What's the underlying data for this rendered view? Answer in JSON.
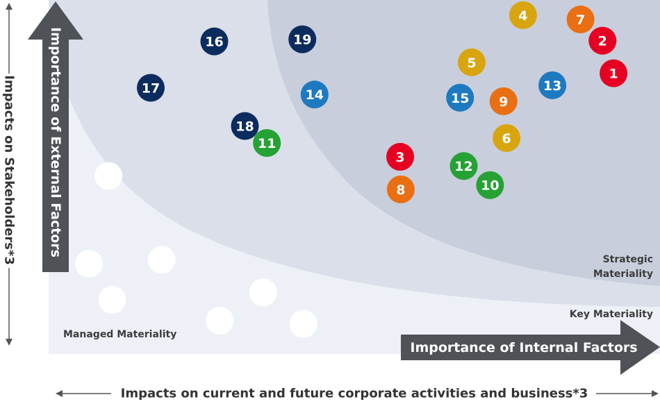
{
  "chart_data": {
    "type": "scatter",
    "x_axis": {
      "label": "Importance of Internal Factors",
      "outer_label": "Impacts on current and future corporate activities and business*3"
    },
    "y_axis": {
      "label": "Importance of External Factors",
      "outer_label": "Impacts on Stakeholders*3"
    },
    "zones": [
      {
        "name": "Strategic Materiality",
        "lines": [
          "Strategic",
          "Materiality"
        ]
      },
      {
        "name": "Key Materiality",
        "lines": [
          "Key Materiality"
        ]
      },
      {
        "name": "Managed Materiality",
        "lines": [
          "Managed Materiality"
        ]
      }
    ],
    "xlim": [
      0,
      100
    ],
    "ylim": [
      0,
      100
    ],
    "colors": {
      "red": "#e60021",
      "orange": "#ea6f12",
      "yellow": "#d9a50f",
      "blue": "#1d79c0",
      "green": "#26a234",
      "navy": "#0d2c5e",
      "white": "#ffffff"
    },
    "points": [
      {
        "label": "1",
        "x": 92.4,
        "y": 79.3,
        "color": "red"
      },
      {
        "label": "2",
        "x": 90.6,
        "y": 88.5,
        "color": "red"
      },
      {
        "label": "3",
        "x": 57.5,
        "y": 55.7,
        "color": "red"
      },
      {
        "label": "4",
        "x": 77.6,
        "y": 95.7,
        "color": "yellow"
      },
      {
        "label": "5",
        "x": 69.2,
        "y": 82.4,
        "color": "yellow"
      },
      {
        "label": "6",
        "x": 74.9,
        "y": 61.0,
        "color": "yellow"
      },
      {
        "label": "7",
        "x": 87.0,
        "y": 94.5,
        "color": "orange"
      },
      {
        "label": "8",
        "x": 57.6,
        "y": 46.5,
        "color": "orange"
      },
      {
        "label": "9",
        "x": 74.4,
        "y": 71.4,
        "color": "orange"
      },
      {
        "label": "10",
        "x": 72.2,
        "y": 47.7,
        "color": "green"
      },
      {
        "label": "11",
        "x": 35.7,
        "y": 59.6,
        "color": "green"
      },
      {
        "label": "12",
        "x": 67.9,
        "y": 53.1,
        "color": "green"
      },
      {
        "label": "13",
        "x": 82.4,
        "y": 75.9,
        "color": "blue"
      },
      {
        "label": "14",
        "x": 43.5,
        "y": 73.3,
        "color": "blue"
      },
      {
        "label": "15",
        "x": 67.3,
        "y": 72.4,
        "color": "blue"
      },
      {
        "label": "16",
        "x": 27.1,
        "y": 88.3,
        "color": "navy"
      },
      {
        "label": "17",
        "x": 16.7,
        "y": 75.2,
        "color": "navy"
      },
      {
        "label": "18",
        "x": 32.1,
        "y": 64.4,
        "color": "navy"
      },
      {
        "label": "19",
        "x": 41.5,
        "y": 88.9,
        "color": "navy"
      },
      {
        "label": "",
        "x": 9.8,
        "y": 50.3,
        "color": "white"
      },
      {
        "label": "",
        "x": 6.6,
        "y": 25.5,
        "color": "white"
      },
      {
        "label": "",
        "x": 18.5,
        "y": 26.6,
        "color": "white"
      },
      {
        "label": "",
        "x": 10.4,
        "y": 15.3,
        "color": "white"
      },
      {
        "label": "",
        "x": 35.1,
        "y": 17.4,
        "color": "white"
      },
      {
        "label": "",
        "x": 28.0,
        "y": 9.4,
        "color": "white"
      },
      {
        "label": "",
        "x": 41.7,
        "y": 8.5,
        "color": "white"
      }
    ]
  }
}
